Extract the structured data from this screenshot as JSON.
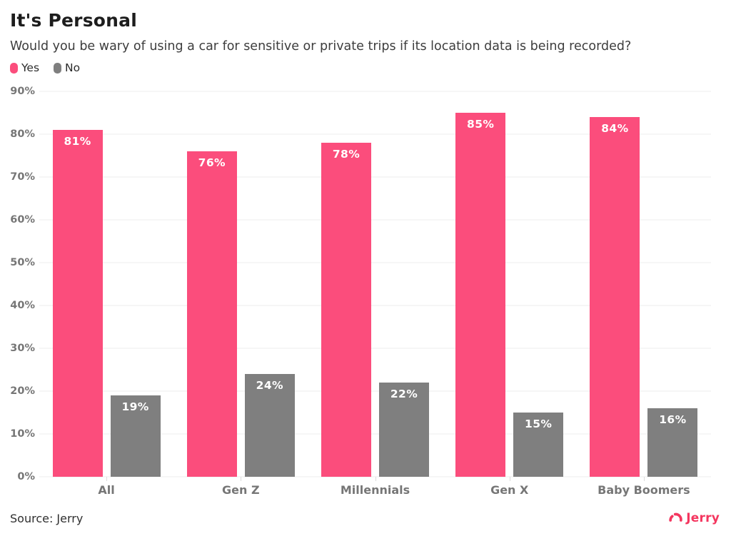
{
  "header": {
    "title": "It's Personal",
    "subtitle": "Would you be wary of using a car for sensitive or private trips if its location data is being recorded?"
  },
  "chart_data": {
    "type": "bar",
    "title": "It's Personal",
    "categories": [
      "All",
      "Gen Z",
      "Millennials",
      "Gen X",
      "Baby Boomers"
    ],
    "series": [
      {
        "name": "Yes",
        "color": "#fb4d7c",
        "values": [
          81,
          76,
          78,
          85,
          84
        ]
      },
      {
        "name": "No",
        "color": "#7f7f7f",
        "values": [
          19,
          24,
          22,
          15,
          16
        ]
      }
    ],
    "value_suffix": "%",
    "xlabel": "",
    "ylabel": "",
    "ylim": [
      0,
      90
    ],
    "ytick_step": 10,
    "ytick_labels": [
      "0%",
      "10%",
      "20%",
      "30%",
      "40%",
      "50%",
      "60%",
      "70%",
      "80%",
      "90%"
    ],
    "grid": true,
    "legend_position": "top-left",
    "bar_label_style": "inside-top-white-bold"
  },
  "colors": {
    "yes_pink": "#fb4d7c",
    "no_gray": "#7f7f7f",
    "gridline": "#ececec",
    "axis_text": "#767676",
    "brand_pink": "#f4365f"
  },
  "footer": {
    "source": "Source: Jerry",
    "logo_text": "Jerry"
  }
}
